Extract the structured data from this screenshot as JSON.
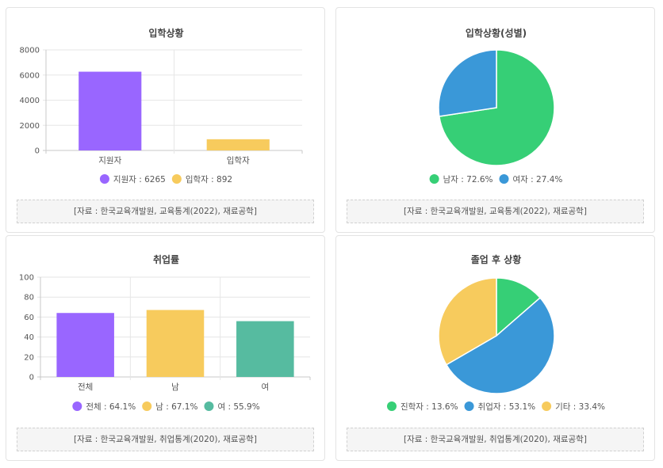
{
  "chart_data": [
    {
      "type": "bar",
      "title": "입학상황",
      "categories": [
        "지원자",
        "입학자"
      ],
      "values": [
        6265,
        892
      ],
      "colors": [
        "#9966ff",
        "#f7cb5d"
      ],
      "legend": [
        "지원자 : 6265",
        "입학자 : 892"
      ],
      "ylim": [
        0,
        8000
      ],
      "yticks": [
        "8000",
        "6000",
        "4000",
        "2000",
        "0"
      ],
      "grid": true,
      "legend_position": "bottom",
      "source": "[자료 : 한국교육개발원, 교육통계(2022), 재료공학]"
    },
    {
      "type": "pie",
      "title": "입학상황(성별)",
      "labels": [
        "남자",
        "여자"
      ],
      "values": [
        72.6,
        27.4
      ],
      "colors": [
        "#36cf76",
        "#3a98d8"
      ],
      "legend": [
        "남자 : 72.6%",
        "여자 : 27.4%"
      ],
      "legend_position": "bottom",
      "source": "[자료 : 한국교육개발원, 교육통계(2022), 재료공학]"
    },
    {
      "type": "bar",
      "title": "취업률",
      "categories": [
        "전체",
        "남",
        "여"
      ],
      "values": [
        64.1,
        67.1,
        55.9
      ],
      "colors": [
        "#9966ff",
        "#f7cb5d",
        "#56bba0"
      ],
      "legend": [
        "전체 : 64.1%",
        "남 : 67.1%",
        "여 : 55.9%"
      ],
      "ylim": [
        0,
        100
      ],
      "yticks": [
        "100",
        "80",
        "60",
        "40",
        "20",
        "0"
      ],
      "grid": true,
      "legend_position": "bottom",
      "source": "[자료 : 한국교육개발원, 취업통계(2020), 재료공학]"
    },
    {
      "type": "pie",
      "title": "졸업 후 상황",
      "labels": [
        "진학자",
        "취업자",
        "기타"
      ],
      "values": [
        13.6,
        53.1,
        33.4
      ],
      "colors": [
        "#36cf76",
        "#3a98d8",
        "#f7cb5d"
      ],
      "legend": [
        "진학자 : 13.6%",
        "취업자 : 53.1%",
        "기타 : 33.4%"
      ],
      "legend_position": "bottom",
      "source": "[자료 : 한국교육개발원, 취업통계(2020), 재료공학]"
    }
  ]
}
